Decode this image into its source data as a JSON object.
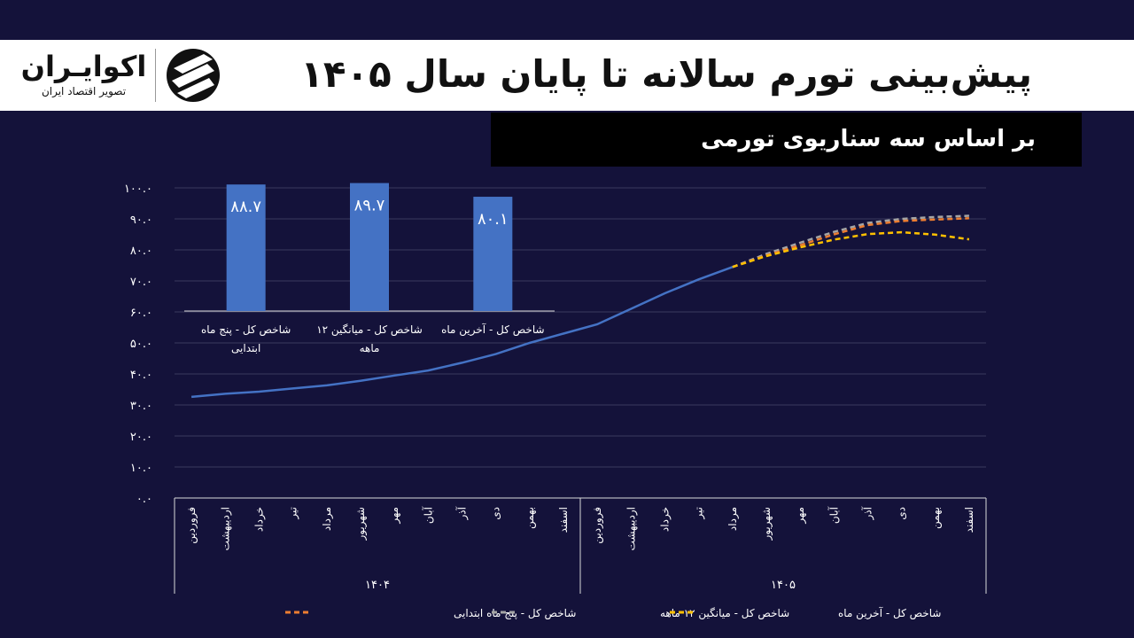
{
  "header": {
    "title": "پیش‌بینی تورم سالانه تا پایان سال ۱۴۰۵",
    "subtitle": "بر اساس سه سناریوی تورمی"
  },
  "logo": {
    "name": "اکوایـران",
    "tagline": "تصویر اقتصاد ایران",
    "icon": "ecoiran-stripes-icon"
  },
  "colors": {
    "background": "#14123a",
    "actual_line": "#4472c4",
    "bar": "#4472c4",
    "scenario_five_month": "#ed7d31",
    "scenario_twelve_month": "#a5a5a5",
    "scenario_last_month": "#ffc000",
    "grid": "#3a3a5e"
  },
  "chart_data": {
    "type": "line",
    "ylim": [
      0,
      100
    ],
    "y_ticks": [
      "۰.۰",
      "۱۰.۰",
      "۲۰.۰",
      "۳۰.۰",
      "۴۰.۰",
      "۵۰.۰",
      "۶۰.۰",
      "۷۰.۰",
      "۸۰.۰",
      "۹۰.۰",
      "۱۰۰.۰"
    ],
    "months": [
      "فروردین",
      "اردیبهشت",
      "خرداد",
      "تیر",
      "مرداد",
      "شهریور",
      "مهر",
      "آبان",
      "آذر",
      "دی",
      "بهمن",
      "اسفند",
      "فروردین",
      "اردیبهشت",
      "خرداد",
      "تیر",
      "مرداد",
      "شهریور",
      "مهر",
      "آبان",
      "آذر",
      "دی",
      "بهمن",
      "اسفند"
    ],
    "years": [
      {
        "label": "۱۴۰۴",
        "start": 0,
        "end": 11
      },
      {
        "label": "۱۴۰۵",
        "start": 12,
        "end": 23
      }
    ],
    "actual": [
      32.6,
      33.6,
      34.3,
      35.3,
      36.3,
      37.8,
      39.5,
      41.1,
      43.6,
      46.4,
      50.0,
      53.0,
      56.0,
      61.0,
      66.0,
      70.5,
      74.5
    ],
    "series": [
      {
        "name": "شاخص کل - پنج ماه ابتدایی",
        "x_start": 16,
        "values": [
          74.5,
          78.2,
          81.5,
          85.0,
          88.0,
          89.3,
          89.8,
          90.2
        ]
      },
      {
        "name": "شاخص کل - میانگین ۱۲ ماهه",
        "x_start": 16,
        "values": [
          74.5,
          78.7,
          82.3,
          85.8,
          88.7,
          90.0,
          90.6,
          91.0
        ]
      },
      {
        "name": "شاخص کل - آخرین ماه",
        "x_start": 16,
        "values": [
          74.5,
          78.0,
          80.8,
          83.3,
          85.1,
          85.7,
          84.9,
          83.4
        ]
      }
    ],
    "bar_chart": {
      "type": "bar",
      "ylim": [
        0,
        100
      ],
      "bars": [
        {
          "label_line1": "شاخص کل - پنج ماه",
          "label_line2": "ابتدایی",
          "value": 88.7,
          "label": "۸۸.۷"
        },
        {
          "label_line1": "شاخص کل - میانگین ۱۲",
          "label_line2": "ماهه",
          "value": 89.7,
          "label": "۸۹.۷"
        },
        {
          "label_line1": "شاخص کل - آخرین ماه",
          "label_line2": "",
          "value": 80.1,
          "label": "۸۰.۱"
        }
      ]
    },
    "legend_position": "bottom",
    "grid": true
  }
}
